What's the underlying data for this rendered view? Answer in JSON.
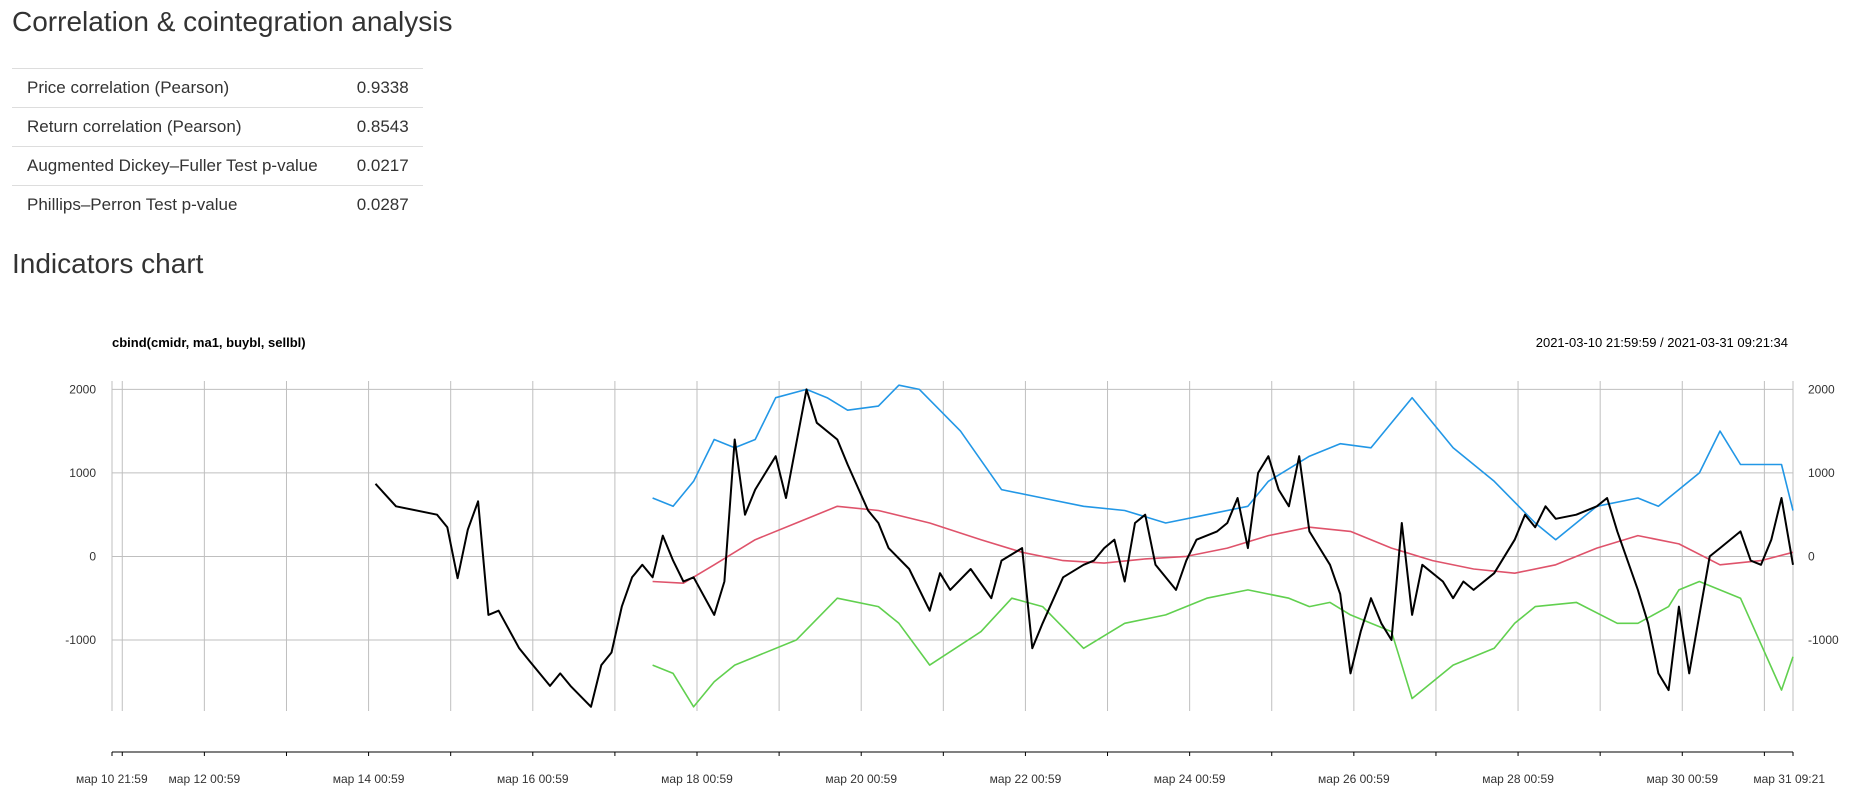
{
  "page": {
    "title": "Correlation & cointegration analysis",
    "chart_heading": "Indicators chart"
  },
  "stats": [
    {
      "label": "Price correlation (Pearson)",
      "value": "0.9338"
    },
    {
      "label": "Return correlation (Pearson)",
      "value": "0.8543"
    },
    {
      "label": "Augmented Dickey–Fuller Test p-value",
      "value": "0.0217"
    },
    {
      "label": "Phillips–Perron Test p-value",
      "value": "0.0287"
    }
  ],
  "colors": {
    "cmidr": "#000000",
    "ma1": "#DF536B",
    "buybl": "#2297E6",
    "sellbl": "#61D04F",
    "grid": "#bfbfbf"
  },
  "chart_data": {
    "type": "line",
    "title": "cbind(cmidr, ma1, buybl, sellbl)",
    "date_range": "2021-03-10 21:59:59 / 2021-03-31 09:21:34",
    "x_tick_labels": [
      "мар 10 21:59",
      "мар 12 00:59",
      "мар 14 00:59",
      "мар 16 00:59",
      "мар 18 00:59",
      "мар 20 00:59",
      "мар 22 00:59",
      "мар 24 00:59",
      "мар 26 00:59",
      "мар 28 00:59",
      "мар 30 00:59",
      "мар 31 09:21"
    ],
    "y_ticks": [
      2000,
      1000,
      0,
      -1000
    ],
    "ylim": [
      -1850,
      2100
    ],
    "xlim": [
      "2021-03-10 21:59",
      "2021-03-31 09:21"
    ],
    "grid": true,
    "series": [
      {
        "name": "cmidr",
        "x": [
          "2021-03-14 03:00",
          "2021-03-14 09:00",
          "2021-03-14 21:00",
          "2021-03-15 00:00",
          "2021-03-15 03:00",
          "2021-03-15 06:00",
          "2021-03-15 09:00",
          "2021-03-15 12:00",
          "2021-03-15 15:00",
          "2021-03-15 21:00",
          "2021-03-16 00:00",
          "2021-03-16 06:00",
          "2021-03-16 09:00",
          "2021-03-16 12:00",
          "2021-03-16 18:00",
          "2021-03-16 21:00",
          "2021-03-17 00:00",
          "2021-03-17 03:00",
          "2021-03-17 06:00",
          "2021-03-17 09:00",
          "2021-03-17 12:00",
          "2021-03-17 15:00",
          "2021-03-17 18:00",
          "2021-03-17 21:00",
          "2021-03-18 00:00",
          "2021-03-18 06:00",
          "2021-03-18 09:00",
          "2021-03-18 12:00",
          "2021-03-18 15:00",
          "2021-03-18 18:00",
          "2021-03-19 00:00",
          "2021-03-19 03:00",
          "2021-03-19 09:00",
          "2021-03-19 12:00",
          "2021-03-19 18:00",
          "2021-03-19 21:00",
          "2021-03-20 03:00",
          "2021-03-20 06:00",
          "2021-03-20 09:00",
          "2021-03-20 15:00",
          "2021-03-20 21:00",
          "2021-03-21 00:00",
          "2021-03-21 03:00",
          "2021-03-21 09:00",
          "2021-03-21 15:00",
          "2021-03-21 18:00",
          "2021-03-22 00:00",
          "2021-03-22 03:00",
          "2021-03-22 06:00",
          "2021-03-22 12:00",
          "2021-03-22 18:00",
          "2021-03-22 21:00",
          "2021-03-23 00:00",
          "2021-03-23 03:00",
          "2021-03-23 06:00",
          "2021-03-23 09:00",
          "2021-03-23 12:00",
          "2021-03-23 15:00",
          "2021-03-23 21:00",
          "2021-03-24 00:00",
          "2021-03-24 03:00",
          "2021-03-24 09:00",
          "2021-03-24 12:00",
          "2021-03-24 15:00",
          "2021-03-24 18:00",
          "2021-03-24 21:00",
          "2021-03-25 00:00",
          "2021-03-25 03:00",
          "2021-03-25 06:00",
          "2021-03-25 09:00",
          "2021-03-25 12:00",
          "2021-03-25 15:00",
          "2021-03-25 18:00",
          "2021-03-25 21:00",
          "2021-03-26 00:00",
          "2021-03-26 03:00",
          "2021-03-26 06:00",
          "2021-03-26 09:00",
          "2021-03-26 12:00",
          "2021-03-26 15:00",
          "2021-03-26 18:00",
          "2021-03-26 21:00",
          "2021-03-27 03:00",
          "2021-03-27 06:00",
          "2021-03-27 09:00",
          "2021-03-27 12:00",
          "2021-03-27 18:00",
          "2021-03-28 00:00",
          "2021-03-28 03:00",
          "2021-03-28 06:00",
          "2021-03-28 09:00",
          "2021-03-28 12:00",
          "2021-03-28 18:00",
          "2021-03-29 00:00",
          "2021-03-29 03:00",
          "2021-03-29 06:00",
          "2021-03-29 12:00",
          "2021-03-29 15:00",
          "2021-03-29 18:00",
          "2021-03-29 21:00",
          "2021-03-30 00:00",
          "2021-03-30 03:00",
          "2021-03-30 06:00",
          "2021-03-30 09:00",
          "2021-03-30 12:00",
          "2021-03-30 18:00",
          "2021-03-30 21:00",
          "2021-03-31 00:00",
          "2021-03-31 03:00",
          "2021-03-31 06:00",
          "2021-03-31 09:21"
        ],
        "y": [
          870,
          600,
          500,
          350,
          -260,
          320,
          660,
          -700,
          -650,
          -1100,
          -1250,
          -1550,
          -1400,
          -1550,
          -1800,
          -1300,
          -1150,
          -600,
          -250,
          -100,
          -250,
          250,
          -50,
          -300,
          -250,
          -700,
          -300,
          1400,
          500,
          800,
          1200,
          700,
          2000,
          1600,
          1400,
          1100,
          550,
          400,
          100,
          -150,
          -650,
          -200,
          -400,
          -150,
          -500,
          -50,
          100,
          -1100,
          -800,
          -250,
          -100,
          -50,
          100,
          200,
          -300,
          400,
          500,
          -100,
          -400,
          -50,
          200,
          300,
          400,
          700,
          100,
          1000,
          1200,
          800,
          600,
          1200,
          300,
          100,
          -100,
          -450,
          -1400,
          -900,
          -500,
          -800,
          -1000,
          400,
          -700,
          -100,
          -300,
          -500,
          -300,
          -400,
          -200,
          200,
          500,
          350,
          600,
          450,
          500,
          600,
          700,
          300,
          -400,
          -800,
          -1400,
          -1600,
          -600,
          -1400,
          -700,
          0,
          100,
          300,
          -50,
          -100,
          200,
          700,
          -100
        ]
      },
      {
        "name": "ma1",
        "x": [
          "2021-03-17 12:00",
          "2021-03-17 21:00",
          "2021-03-18 06:00",
          "2021-03-18 18:00",
          "2021-03-19 06:00",
          "2021-03-19 18:00",
          "2021-03-20 06:00",
          "2021-03-20 21:00",
          "2021-03-21 12:00",
          "2021-03-22 00:00",
          "2021-03-22 12:00",
          "2021-03-23 00:00",
          "2021-03-23 12:00",
          "2021-03-24 00:00",
          "2021-03-24 12:00",
          "2021-03-25 00:00",
          "2021-03-25 12:00",
          "2021-03-26 00:00",
          "2021-03-26 12:00",
          "2021-03-27 00:00",
          "2021-03-27 12:00",
          "2021-03-28 00:00",
          "2021-03-28 12:00",
          "2021-03-29 00:00",
          "2021-03-29 12:00",
          "2021-03-30 00:00",
          "2021-03-30 12:00",
          "2021-03-31 00:00",
          "2021-03-31 09:21"
        ],
        "y": [
          -300,
          -320,
          -100,
          200,
          400,
          600,
          550,
          400,
          200,
          50,
          -50,
          -80,
          -30,
          0,
          100,
          250,
          350,
          300,
          100,
          -50,
          -150,
          -200,
          -100,
          100,
          250,
          150,
          -100,
          -50,
          50
        ]
      },
      {
        "name": "buybl",
        "x": [
          "2021-03-17 12:00",
          "2021-03-17 18:00",
          "2021-03-18 00:00",
          "2021-03-18 06:00",
          "2021-03-18 12:00",
          "2021-03-18 18:00",
          "2021-03-19 00:00",
          "2021-03-19 09:00",
          "2021-03-19 15:00",
          "2021-03-19 21:00",
          "2021-03-20 06:00",
          "2021-03-20 12:00",
          "2021-03-20 18:00",
          "2021-03-21 06:00",
          "2021-03-21 18:00",
          "2021-03-22 06:00",
          "2021-03-22 18:00",
          "2021-03-23 06:00",
          "2021-03-23 18:00",
          "2021-03-24 06:00",
          "2021-03-24 18:00",
          "2021-03-25 00:00",
          "2021-03-25 12:00",
          "2021-03-25 21:00",
          "2021-03-26 06:00",
          "2021-03-26 18:00",
          "2021-03-27 06:00",
          "2021-03-27 18:00",
          "2021-03-28 06:00",
          "2021-03-28 12:00",
          "2021-03-29 00:00",
          "2021-03-29 12:00",
          "2021-03-29 18:00",
          "2021-03-30 06:00",
          "2021-03-30 12:00",
          "2021-03-30 18:00",
          "2021-03-31 06:00",
          "2021-03-31 09:21"
        ],
        "y": [
          700,
          600,
          900,
          1400,
          1300,
          1400,
          1900,
          2000,
          1900,
          1750,
          1800,
          2050,
          2000,
          1500,
          800,
          700,
          600,
          550,
          400,
          500,
          600,
          900,
          1200,
          1350,
          1300,
          1900,
          1300,
          900,
          400,
          200,
          600,
          700,
          600,
          1000,
          1500,
          1100,
          1100,
          550
        ]
      },
      {
        "name": "sellbl",
        "x": [
          "2021-03-17 12:00",
          "2021-03-17 18:00",
          "2021-03-18 00:00",
          "2021-03-18 06:00",
          "2021-03-18 12:00",
          "2021-03-18 18:00",
          "2021-03-19 06:00",
          "2021-03-19 18:00",
          "2021-03-20 06:00",
          "2021-03-20 12:00",
          "2021-03-20 21:00",
          "2021-03-21 12:00",
          "2021-03-21 21:00",
          "2021-03-22 06:00",
          "2021-03-22 18:00",
          "2021-03-23 06:00",
          "2021-03-23 18:00",
          "2021-03-24 06:00",
          "2021-03-24 18:00",
          "2021-03-25 06:00",
          "2021-03-25 12:00",
          "2021-03-25 18:00",
          "2021-03-26 00:00",
          "2021-03-26 12:00",
          "2021-03-26 18:00",
          "2021-03-27 06:00",
          "2021-03-27 18:00",
          "2021-03-28 00:00",
          "2021-03-28 06:00",
          "2021-03-28 18:00",
          "2021-03-29 06:00",
          "2021-03-29 12:00",
          "2021-03-29 21:00",
          "2021-03-30 00:00",
          "2021-03-30 06:00",
          "2021-03-30 18:00",
          "2021-03-31 06:00",
          "2021-03-31 09:21"
        ],
        "y": [
          -1300,
          -1400,
          -1800,
          -1500,
          -1300,
          -1200,
          -1000,
          -500,
          -600,
          -800,
          -1300,
          -900,
          -500,
          -600,
          -1100,
          -800,
          -700,
          -500,
          -400,
          -500,
          -600,
          -550,
          -700,
          -900,
          -1700,
          -1300,
          -1100,
          -800,
          -600,
          -550,
          -800,
          -800,
          -600,
          -400,
          -300,
          -500,
          -1600,
          -1200
        ]
      }
    ]
  }
}
